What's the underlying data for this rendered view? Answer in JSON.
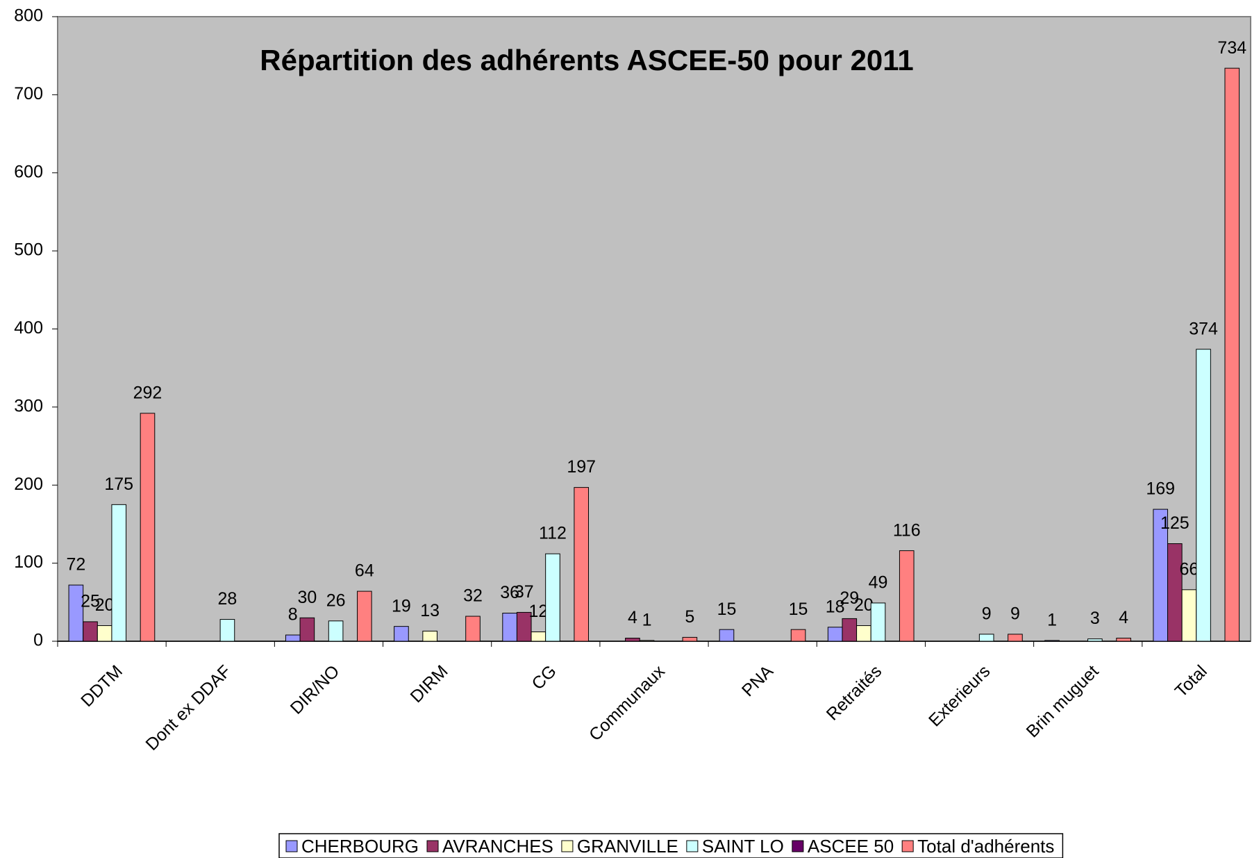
{
  "chart_data": {
    "type": "bar",
    "title": "Répartition des adhérents ASCEE-50 pour 2011",
    "categories": [
      "DDTM",
      "Dont ex DDAF",
      "DIR/NO",
      "DIRM",
      "CG",
      "Communaux",
      "PNA",
      "Retraités",
      "Exterieurs",
      "Brin muguet",
      "Total"
    ],
    "series": [
      {
        "name": "CHERBOURG",
        "color": "#9999ff",
        "values": [
          72,
          null,
          8,
          19,
          36,
          null,
          15,
          18,
          null,
          1,
          169
        ]
      },
      {
        "name": "AVRANCHES",
        "color": "#993366",
        "values": [
          25,
          null,
          30,
          null,
          37,
          4,
          null,
          29,
          null,
          null,
          125
        ]
      },
      {
        "name": "GRANVILLE",
        "color": "#ffffcc",
        "values": [
          20,
          null,
          null,
          13,
          12,
          1,
          null,
          20,
          null,
          null,
          66
        ]
      },
      {
        "name": "SAINT LO",
        "color": "#ccffff",
        "values": [
          175,
          28,
          26,
          null,
          112,
          null,
          null,
          49,
          9,
          3,
          374
        ]
      },
      {
        "name": "ASCEE 50",
        "color": "#660066",
        "values": [
          null,
          null,
          null,
          null,
          null,
          null,
          null,
          null,
          null,
          null,
          null
        ]
      },
      {
        "name": "Total d'adhérents",
        "color": "#ff8080",
        "values": [
          292,
          null,
          64,
          32,
          197,
          5,
          15,
          116,
          9,
          4,
          734
        ]
      }
    ],
    "ylim": [
      0,
      800
    ],
    "yticks": [
      0,
      100,
      200,
      300,
      400,
      500,
      600,
      700,
      800
    ],
    "plot_background": "#c0c0c0"
  }
}
